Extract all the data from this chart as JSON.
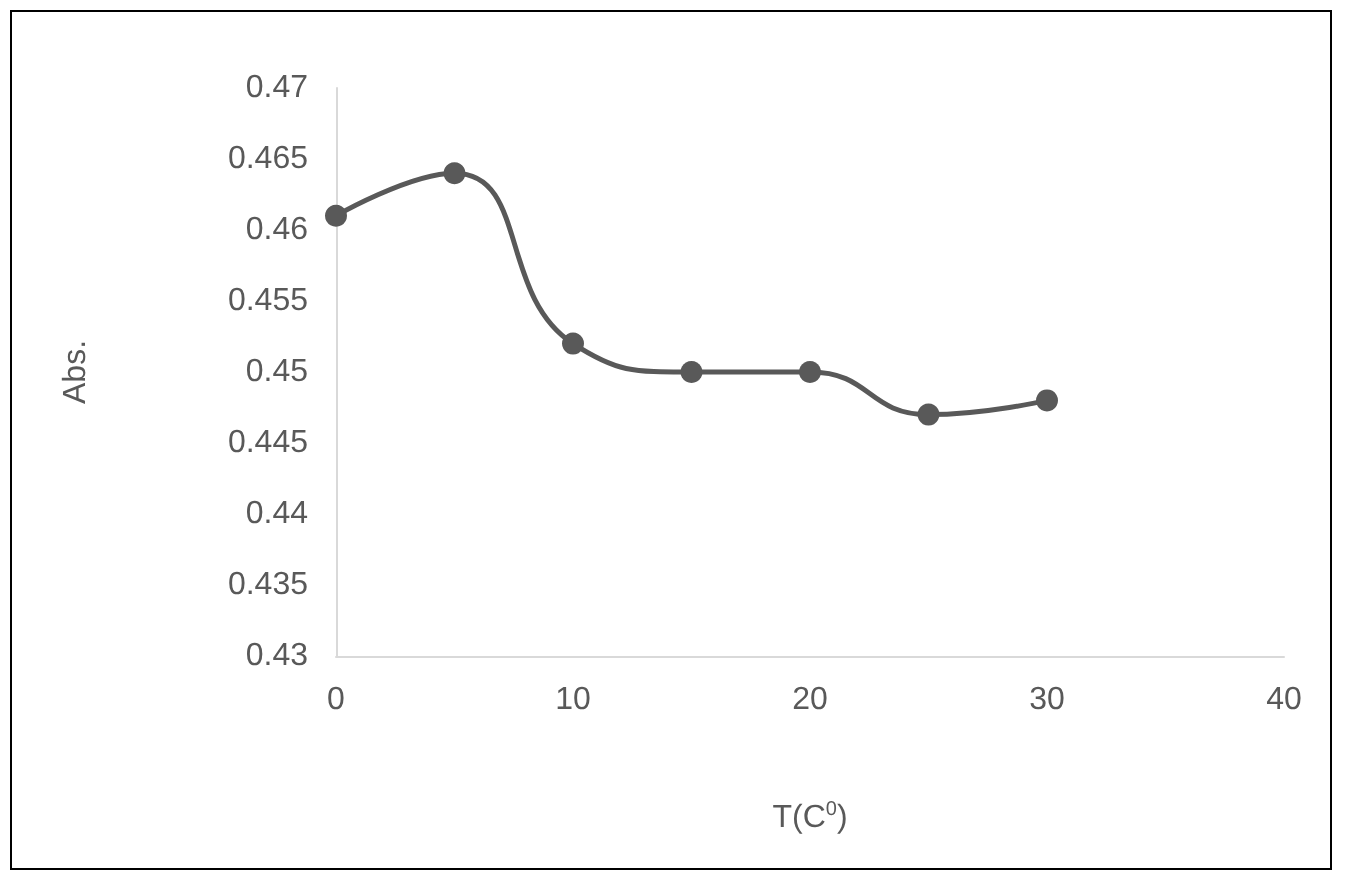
{
  "chart_data": {
    "type": "line",
    "xlabel": "T(C$^{0}$)",
    "ylabel": "Abs.",
    "x": [
      0,
      5,
      10,
      15,
      20,
      25,
      30
    ],
    "series": [
      {
        "color": "#595959",
        "values": [
          0.461,
          0.464,
          0.452,
          0.45,
          0.45,
          0.447,
          0.448
        ]
      }
    ],
    "xlim": [
      0,
      40
    ],
    "xticks": [
      0,
      10,
      20,
      30,
      40
    ],
    "ylim": [
      0.43,
      0.47
    ],
    "yticks": [
      0.43,
      0.435,
      0.44,
      0.445,
      0.45,
      0.455,
      0.46,
      0.465,
      0.47
    ],
    "grid": false,
    "marker": "circle",
    "line_style": "solid"
  }
}
